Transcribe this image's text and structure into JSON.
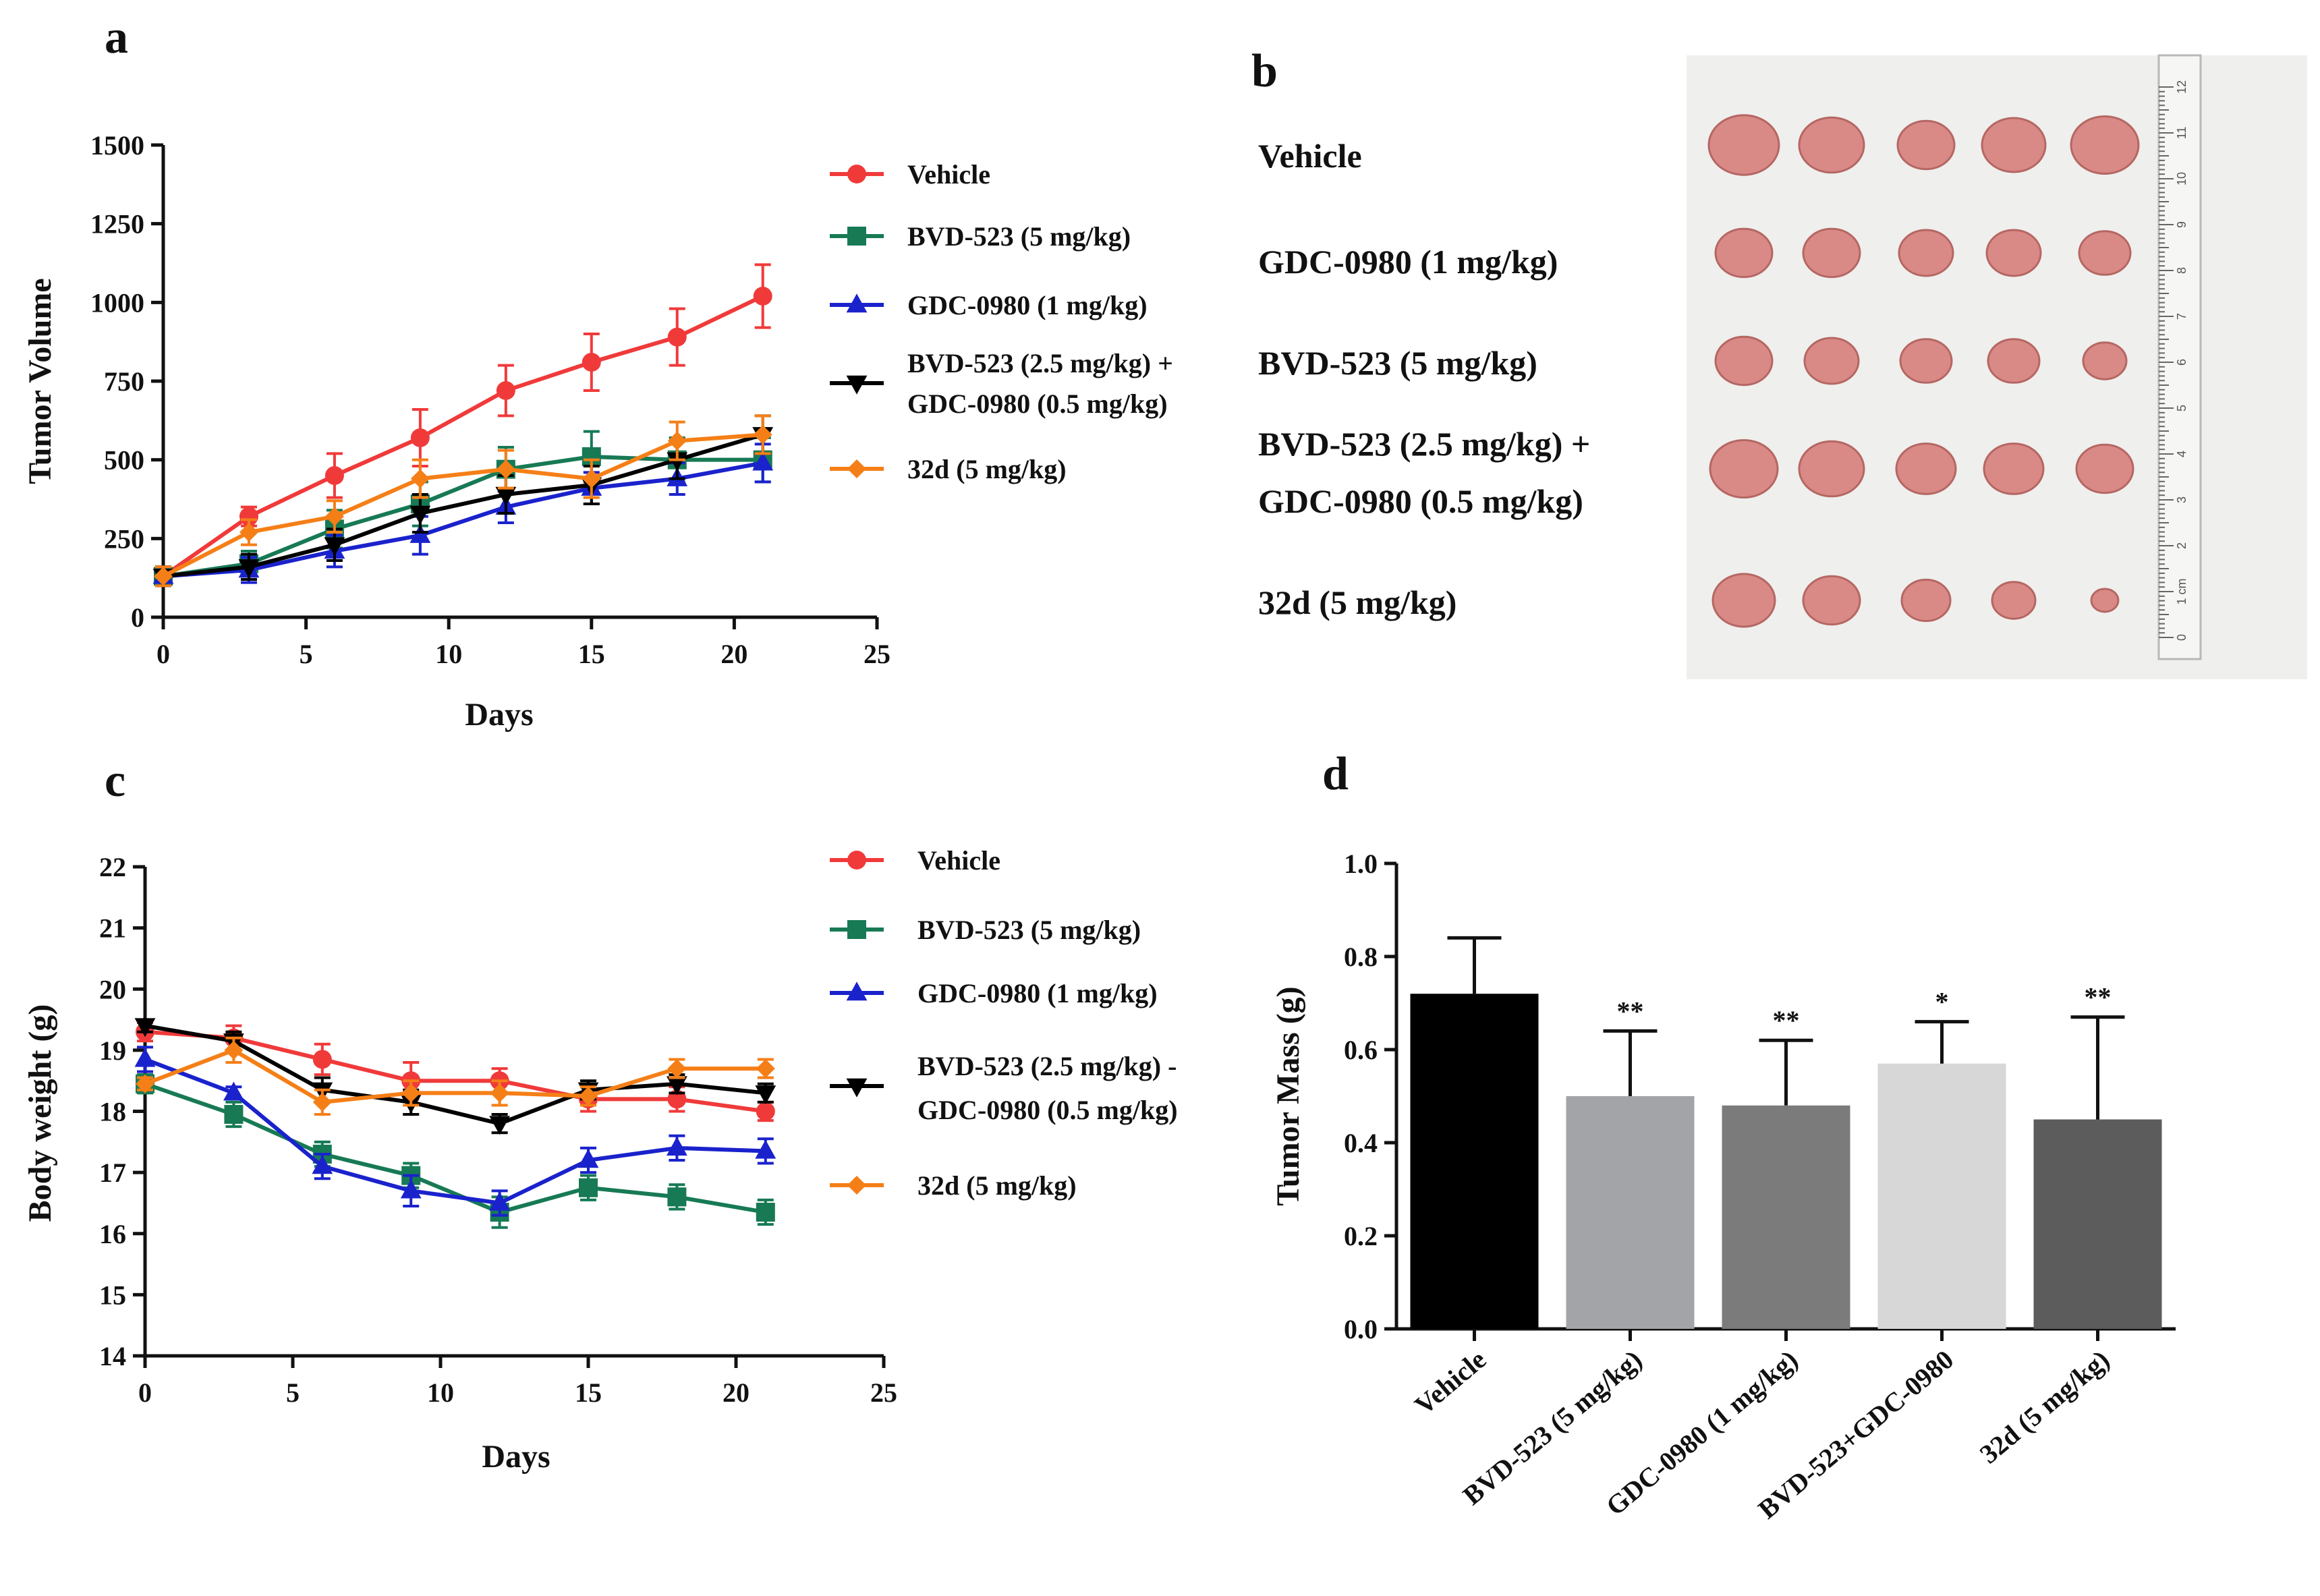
{
  "panels": {
    "a": "a",
    "b": "b",
    "c": "c",
    "d": "d"
  },
  "colors": {
    "vehicle": "#f03a3a",
    "bvd": "#177a55",
    "gdc": "#1a22cc",
    "combo": "#000000",
    "d32": "#f57f17",
    "photo_bg": "#efefed",
    "tumor": "#d98a86"
  },
  "chart_data": [
    {
      "panel": "a",
      "type": "line",
      "title": "",
      "xlabel": "Days",
      "ylabel": "Tumor Volume",
      "xlim": [
        0,
        25
      ],
      "ylim": [
        0,
        1500
      ],
      "xticks": [
        "0",
        "5",
        "10",
        "15",
        "20",
        "25"
      ],
      "yticks": [
        "0",
        "250",
        "500",
        "750",
        "1000",
        "1250",
        "1500"
      ],
      "x": [
        0,
        3,
        6,
        9,
        12,
        15,
        18,
        21
      ],
      "series": [
        {
          "name": "Vehicle",
          "key": "vehicle",
          "marker": "circle",
          "values": [
            130,
            320,
            450,
            570,
            720,
            810,
            890,
            1020
          ],
          "err": [
            30,
            30,
            70,
            90,
            80,
            90,
            90,
            100
          ]
        },
        {
          "name": "BVD-523 (5 mg/kg)",
          "key": "bvd",
          "marker": "square",
          "values": [
            130,
            170,
            280,
            360,
            470,
            510,
            500,
            500
          ],
          "err": [
            30,
            40,
            60,
            70,
            70,
            80,
            70,
            70
          ]
        },
        {
          "name": "GDC-0980 (1 mg/kg)",
          "key": "gdc",
          "marker": "triangle-up",
          "values": [
            130,
            150,
            210,
            260,
            350,
            410,
            440,
            490
          ],
          "err": [
            30,
            40,
            50,
            60,
            50,
            50,
            50,
            60
          ]
        },
        {
          "name": "BVD-523 (2.5 mg/kg) + GDC-0980 (0.5 mg/kg)",
          "key": "combo",
          "marker": "triangle-down",
          "values": [
            130,
            160,
            230,
            330,
            390,
            420,
            500,
            580
          ],
          "err": [
            30,
            40,
            50,
            60,
            60,
            60,
            60,
            60
          ]
        },
        {
          "name": "32d (5 mg/kg)",
          "key": "d32",
          "marker": "diamond",
          "values": [
            130,
            270,
            320,
            440,
            470,
            440,
            560,
            580
          ],
          "err": [
            30,
            40,
            50,
            60,
            60,
            60,
            60,
            60
          ]
        }
      ],
      "legend": [
        "Vehicle",
        "BVD-523 (5 mg/kg)",
        "GDC-0980 (1 mg/kg)",
        "BVD-523 (2.5 mg/kg) +",
        "GDC-0980 (0.5 mg/kg)",
        "32d (5 mg/kg)"
      ]
    },
    {
      "panel": "c",
      "type": "line",
      "title": "",
      "xlabel": "Days",
      "ylabel": "Body weight (g)",
      "xlim": [
        0,
        25
      ],
      "ylim": [
        14,
        22
      ],
      "xticks": [
        "0",
        "5",
        "10",
        "15",
        "20",
        "25"
      ],
      "yticks": [
        "14",
        "15",
        "16",
        "17",
        "18",
        "19",
        "20",
        "21",
        "22"
      ],
      "x": [
        0,
        3,
        6,
        9,
        12,
        15,
        18,
        21
      ],
      "series": [
        {
          "name": "Vehicle",
          "key": "vehicle",
          "marker": "circle",
          "values": [
            19.3,
            19.2,
            18.85,
            18.5,
            18.5,
            18.2,
            18.2,
            18.0
          ],
          "err": [
            0.15,
            0.2,
            0.25,
            0.3,
            0.2,
            0.2,
            0.2,
            0.15
          ]
        },
        {
          "name": "BVD-523 (5 mg/kg)",
          "key": "bvd",
          "marker": "square",
          "values": [
            18.45,
            17.95,
            17.3,
            16.95,
            16.35,
            16.75,
            16.6,
            16.35
          ],
          "err": [
            0.15,
            0.2,
            0.2,
            0.2,
            0.25,
            0.2,
            0.2,
            0.2
          ]
        },
        {
          "name": "GDC-0980 (1 mg/kg)",
          "key": "gdc",
          "marker": "triangle-up",
          "values": [
            18.85,
            18.3,
            17.1,
            16.7,
            16.5,
            17.2,
            17.4,
            17.35
          ],
          "err": [
            0.2,
            0.1,
            0.2,
            0.25,
            0.2,
            0.2,
            0.2,
            0.2
          ]
        },
        {
          "name": "BVD-523 (2.5 mg/kg) - GDC-0980 (0.5 mg/kg)",
          "key": "combo",
          "marker": "triangle-down",
          "values": [
            19.4,
            19.15,
            18.35,
            18.15,
            17.8,
            18.35,
            18.45,
            18.3
          ],
          "err": [
            0.1,
            0.15,
            0.2,
            0.2,
            0.15,
            0.15,
            0.15,
            0.15
          ]
        },
        {
          "name": "32d (5 mg/kg)",
          "key": "d32",
          "marker": "diamond",
          "values": [
            18.45,
            19.0,
            18.15,
            18.3,
            18.3,
            18.25,
            18.7,
            18.7
          ],
          "err": [
            0.1,
            0.2,
            0.2,
            0.2,
            0.2,
            0.15,
            0.15,
            0.15
          ]
        }
      ],
      "legend": [
        "Vehicle",
        "BVD-523 (5 mg/kg)",
        "GDC-0980 (1 mg/kg)",
        "BVD-523 (2.5 mg/kg) -",
        "GDC-0980 (0.5 mg/kg)",
        "32d (5 mg/kg)"
      ]
    },
    {
      "panel": "d",
      "type": "bar",
      "title": "",
      "xlabel": "",
      "ylabel": "Tumor Mass (g)",
      "ylim": [
        0,
        1.0
      ],
      "yticks": [
        "0.0",
        "0.2",
        "0.4",
        "0.6",
        "0.8",
        "1.0"
      ],
      "categories": [
        "Vehicle",
        "BVD-523 (5 mg/kg)",
        "GDC-0980 (1 mg/kg)",
        "BVD-523+GDC-0980",
        "32d (5 mg/kg)"
      ],
      "values": [
        0.72,
        0.5,
        0.48,
        0.57,
        0.45
      ],
      "err": [
        0.12,
        0.14,
        0.14,
        0.09,
        0.22
      ],
      "significance": [
        "",
        "**",
        "**",
        "*",
        "**"
      ],
      "bar_colors": [
        "#000000",
        "#a2a4a8",
        "#7b7b7b",
        "#d7d7d7",
        "#5c5c5c"
      ]
    }
  ],
  "photo": {
    "labels": [
      "Vehicle",
      "GDC-0980 (1 mg/kg)",
      "BVD-523 (5 mg/kg)",
      "BVD-523 (2.5 mg/kg) +",
      "GDC-0980 (0.5 mg/kg)",
      "32d (5 mg/kg)"
    ],
    "ruler_marks": [
      "0",
      "1 cm",
      "2",
      "3",
      "4",
      "5",
      "6",
      "7",
      "8",
      "9",
      "10",
      "11",
      "12"
    ]
  }
}
